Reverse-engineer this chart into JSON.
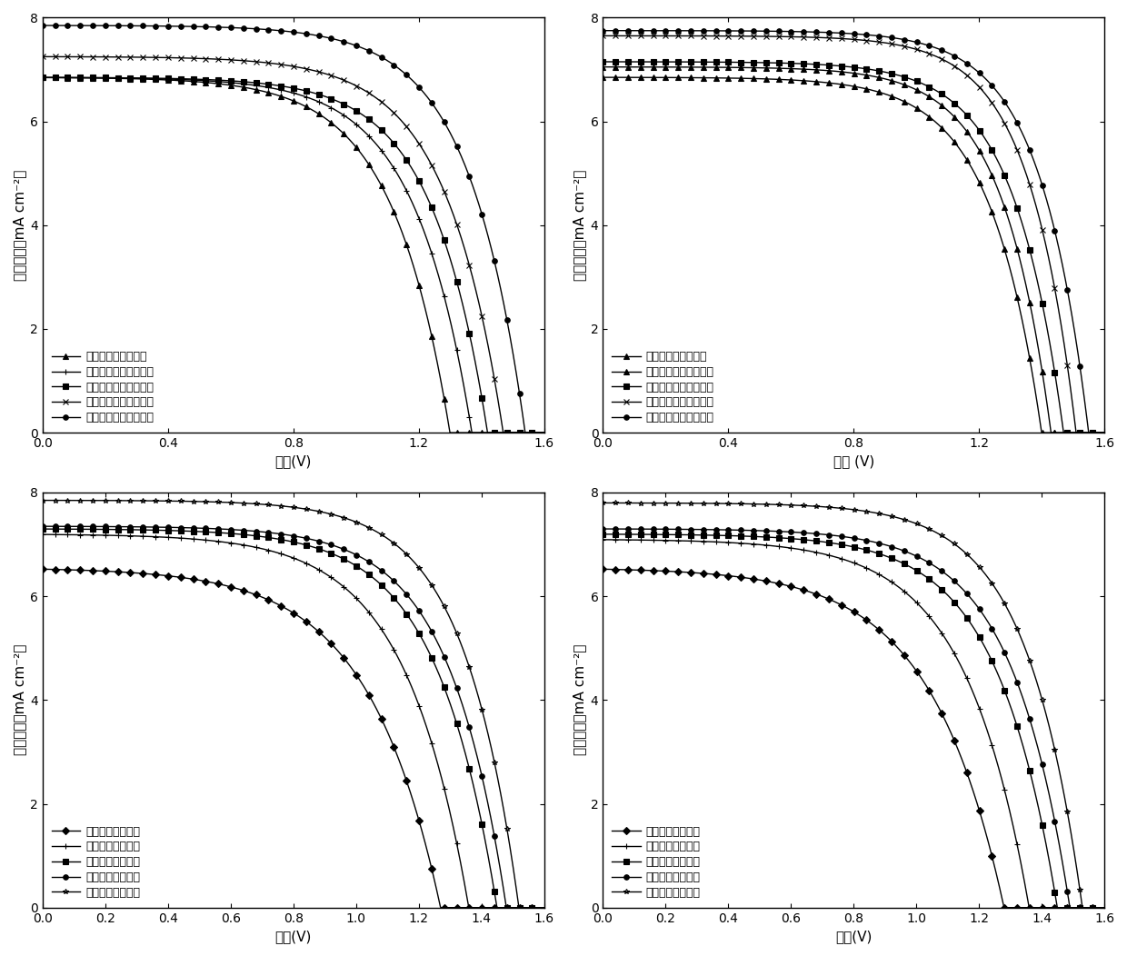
{
  "subplots": [
    {
      "legend_labels": [
        "未经掖杂的正面效率",
        "锤离子掖杂的正面效率",
        "钓离子掖杂的正面效率",
        "钒离子掖杂的正面效率",
        "铷离子掖杂的正面效率"
      ],
      "markers": [
        "^",
        "+",
        "s",
        "x",
        "o"
      ],
      "jsc": [
        6.85,
        6.85,
        6.85,
        7.25,
        7.85
      ],
      "voc": [
        1.3,
        1.37,
        1.42,
        1.47,
        1.54
      ],
      "ff": [
        0.83,
        0.84,
        0.85,
        0.85,
        0.86
      ],
      "xticks": [
        0.0,
        0.4,
        0.8,
        1.2,
        1.6
      ],
      "xlabel": "电压(V)",
      "ylabel": "电流密度（mA cm⁻²）"
    },
    {
      "legend_labels": [
        "未经掖杂的背面效率",
        "锤离子掖杂的背面效率",
        "钓离子掖杂的背面效率",
        "钒离子掖杂的背面效率",
        "铷离子掖杂的背面效率"
      ],
      "markers": [
        "^",
        "^",
        "s",
        "x",
        "o"
      ],
      "jsc": [
        6.85,
        7.05,
        7.15,
        7.65,
        7.75
      ],
      "voc": [
        1.4,
        1.43,
        1.47,
        1.51,
        1.55
      ],
      "ff": [
        0.86,
        0.87,
        0.87,
        0.88,
        0.88
      ],
      "xticks": [
        0.0,
        0.4,
        0.8,
        1.2,
        1.6
      ],
      "xlabel": "电压 (V)",
      "ylabel": "电流密度（mA cm⁻²）"
    },
    {
      "legend_labels": [
        "未掖杂的正面效率",
        "镇掖杂的正面效率",
        "钓掖杂的正面效率",
        "锥掖杂的正面效率",
        "钔掖杂的正面效率"
      ],
      "markers": [
        "D",
        "+",
        "s",
        "o",
        "*"
      ],
      "jsc": [
        6.55,
        7.2,
        7.3,
        7.35,
        7.85
      ],
      "voc": [
        1.27,
        1.36,
        1.45,
        1.48,
        1.52
      ],
      "ff": [
        0.78,
        0.82,
        0.84,
        0.85,
        0.86
      ],
      "xticks": [
        0.0,
        0.2,
        0.4,
        0.6,
        0.8,
        1.0,
        1.2,
        1.4,
        1.6
      ],
      "xlabel": "电压(V)",
      "ylabel": "电流密度（mA cm⁻²）"
    },
    {
      "legend_labels": [
        "未掖杂的背面效率",
        "镇掖杂的背面效率",
        "钓掖杂的背面效率",
        "锥掖杂的背面效率",
        "钔掖杂的背面效率"
      ],
      "markers": [
        "D",
        "+",
        "s",
        "o",
        "*"
      ],
      "jsc": [
        6.55,
        7.1,
        7.2,
        7.3,
        7.8
      ],
      "voc": [
        1.28,
        1.36,
        1.45,
        1.49,
        1.53
      ],
      "ff": [
        0.78,
        0.82,
        0.84,
        0.85,
        0.86
      ],
      "xticks": [
        0.0,
        0.2,
        0.4,
        0.6,
        0.8,
        1.0,
        1.2,
        1.4,
        1.6
      ],
      "xlabel": "电压(V)",
      "ylabel": "电流密度（mA cm⁻²）"
    }
  ],
  "ylim": [
    0,
    8
  ],
  "xlim": [
    0,
    1.6
  ],
  "yticks": [
    0,
    2,
    4,
    6,
    8
  ],
  "color": "black",
  "linewidth": 1.0,
  "markersize": 4,
  "markevery": 20,
  "legend_fontsize": 9,
  "label_fontsize": 11,
  "tick_fontsize": 10
}
